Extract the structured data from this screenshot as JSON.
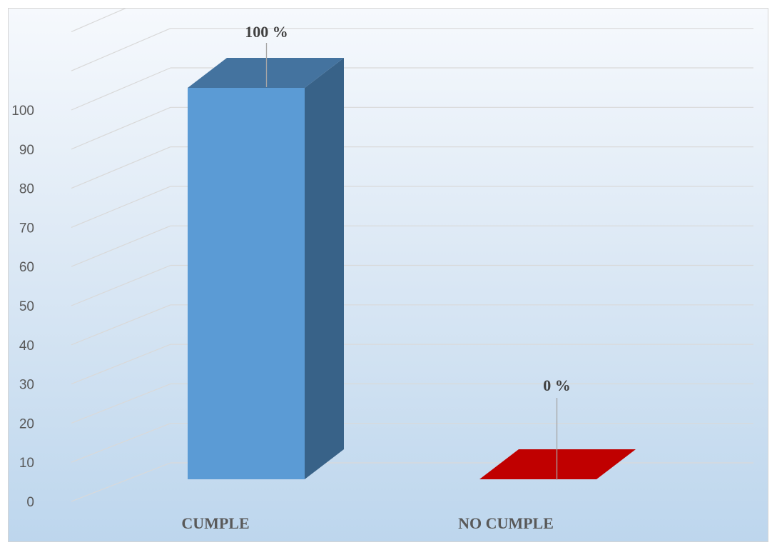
{
  "chart_data": {
    "type": "bar",
    "style": "3d-column",
    "categories": [
      "CUMPLE",
      "NO CUMPLE"
    ],
    "values": [
      100,
      0
    ],
    "data_labels": [
      "100 %",
      "0 %"
    ],
    "y_ticks": [
      0,
      10,
      20,
      30,
      40,
      50,
      60,
      70,
      80,
      90,
      100
    ],
    "ylim": [
      0,
      100
    ],
    "grid": true,
    "legend": "none",
    "title": "",
    "xlabel": "",
    "ylabel": "",
    "colors": {
      "CUMPLE": {
        "front": "#5b9bd5",
        "side": "#386288",
        "top": "#44739f"
      },
      "NO CUMPLE": {
        "front": "#c00000",
        "side": "#a00000",
        "top": "#c00000"
      },
      "gridline": "#d9d9d9",
      "leader_line": "#a6a6a6"
    }
  }
}
